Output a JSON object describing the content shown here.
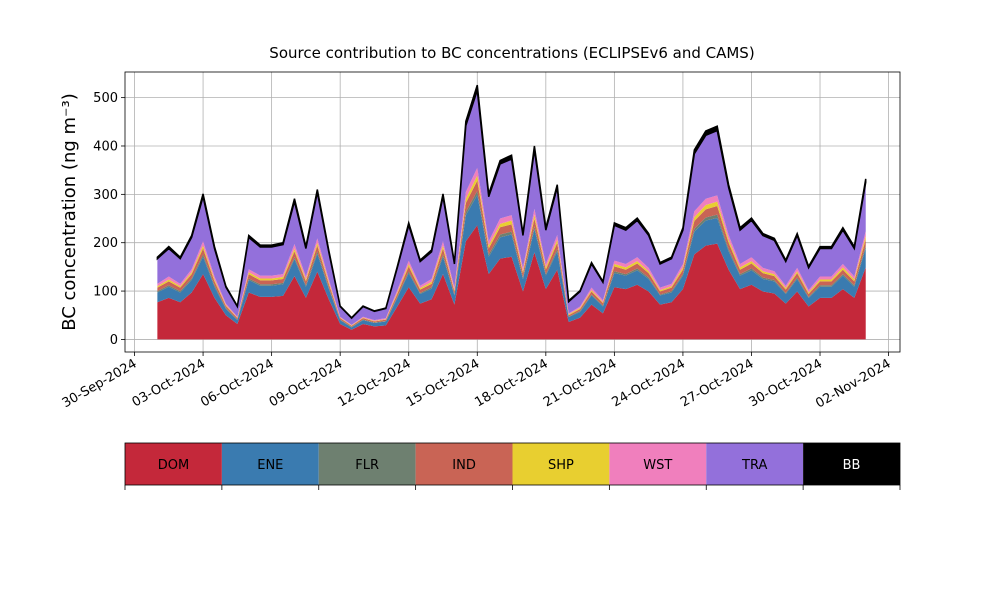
{
  "chart_data": {
    "type": "stacked_area",
    "title": "Source contribution to BC concentrations (ECLIPSEv6 and CAMS)",
    "y_label": "BC concentration (ng m⁻³)",
    "x": [
      "2024-10-01T00:00",
      "2024-10-01T12:00",
      "2024-10-02T00:00",
      "2024-10-02T12:00",
      "2024-10-03T00:00",
      "2024-10-03T12:00",
      "2024-10-04T00:00",
      "2024-10-04T12:00",
      "2024-10-05T00:00",
      "2024-10-05T12:00",
      "2024-10-06T00:00",
      "2024-10-06T12:00",
      "2024-10-07T00:00",
      "2024-10-07T12:00",
      "2024-10-08T00:00",
      "2024-10-08T12:00",
      "2024-10-09T00:00",
      "2024-10-09T12:00",
      "2024-10-10T00:00",
      "2024-10-10T12:00",
      "2024-10-11T00:00",
      "2024-10-11T12:00",
      "2024-10-12T00:00",
      "2024-10-12T12:00",
      "2024-10-13T00:00",
      "2024-10-13T12:00",
      "2024-10-14T00:00",
      "2024-10-14T12:00",
      "2024-10-15T00:00",
      "2024-10-15T12:00",
      "2024-10-16T00:00",
      "2024-10-16T12:00",
      "2024-10-17T00:00",
      "2024-10-17T12:00",
      "2024-10-18T00:00",
      "2024-10-18T12:00",
      "2024-10-19T00:00",
      "2024-10-19T12:00",
      "2024-10-20T00:00",
      "2024-10-20T12:00",
      "2024-10-21T00:00",
      "2024-10-21T12:00",
      "2024-10-22T00:00",
      "2024-10-22T12:00",
      "2024-10-23T00:00",
      "2024-10-23T12:00",
      "2024-10-24T00:00",
      "2024-10-24T12:00",
      "2024-10-25T00:00",
      "2024-10-25T12:00",
      "2024-10-26T00:00",
      "2024-10-26T12:00",
      "2024-10-27T00:00",
      "2024-10-27T12:00",
      "2024-10-28T00:00",
      "2024-10-28T12:00",
      "2024-10-29T00:00",
      "2024-10-29T12:00",
      "2024-10-30T00:00",
      "2024-10-30T12:00",
      "2024-10-31T00:00",
      "2024-10-31T12:00",
      "2024-11-01T00:00"
    ],
    "series": [
      {
        "name": "DOM",
        "color": "#c4283a",
        "values": [
          77,
          86,
          77,
          97,
          135,
          86,
          50,
          32,
          97,
          88,
          88,
          90,
          131,
          86,
          140,
          83,
          32,
          20,
          32,
          27,
          29,
          68,
          108,
          74,
          83,
          135,
          72,
          203,
          236,
          135,
          167,
          171,
          99,
          180,
          104,
          144,
          36,
          45,
          72,
          54,
          108,
          104,
          113,
          99,
          72,
          77,
          104,
          176,
          194,
          198,
          144,
          104,
          113,
          99,
          95,
          74,
          99,
          68,
          86,
          86,
          104,
          86,
          149
        ]
      },
      {
        "name": "ENE",
        "color": "#3a7bb0",
        "values": [
          20,
          23,
          20,
          26,
          36,
          23,
          13,
          8,
          26,
          23,
          23,
          24,
          35,
          23,
          37,
          22,
          8,
          5,
          8,
          7,
          8,
          18,
          29,
          20,
          22,
          36,
          19,
          54,
          63,
          36,
          44,
          46,
          26,
          48,
          28,
          38,
          10,
          12,
          19,
          14,
          29,
          28,
          30,
          26,
          19,
          20,
          28,
          47,
          52,
          53,
          38,
          28,
          30,
          26,
          25,
          20,
          26,
          18,
          23,
          23,
          28,
          23,
          40
        ]
      },
      {
        "name": "FLR",
        "color": "#6e8070",
        "values": [
          3,
          3,
          3,
          3,
          5,
          3,
          2,
          1,
          3,
          3,
          3,
          3,
          4,
          3,
          5,
          3,
          1,
          1,
          1,
          1,
          1,
          2,
          4,
          2,
          3,
          5,
          2,
          7,
          8,
          5,
          6,
          6,
          3,
          6,
          3,
          5,
          1,
          2,
          2,
          2,
          4,
          3,
          4,
          3,
          2,
          3,
          3,
          6,
          6,
          7,
          5,
          3,
          4,
          3,
          3,
          2,
          3,
          2,
          3,
          3,
          3,
          3,
          5
        ]
      },
      {
        "name": "IND",
        "color": "#c96455",
        "values": [
          7,
          8,
          7,
          9,
          12,
          8,
          4,
          3,
          9,
          8,
          8,
          8,
          12,
          8,
          12,
          7,
          3,
          2,
          3,
          2,
          3,
          6,
          10,
          7,
          7,
          12,
          6,
          18,
          21,
          12,
          15,
          15,
          9,
          16,
          9,
          13,
          3,
          4,
          6,
          5,
          10,
          9,
          10,
          9,
          6,
          7,
          9,
          16,
          17,
          18,
          13,
          9,
          10,
          9,
          8,
          7,
          9,
          6,
          8,
          8,
          9,
          8,
          13
        ]
      },
      {
        "name": "SHP",
        "color": "#e8cf30",
        "values": [
          3,
          4,
          3,
          4,
          6,
          4,
          2,
          1,
          4,
          4,
          4,
          4,
          6,
          4,
          6,
          4,
          1,
          1,
          1,
          1,
          1,
          3,
          5,
          3,
          4,
          6,
          3,
          9,
          11,
          6,
          7,
          8,
          4,
          8,
          5,
          6,
          2,
          2,
          3,
          2,
          5,
          5,
          5,
          4,
          3,
          3,
          5,
          8,
          9,
          9,
          6,
          5,
          5,
          4,
          4,
          3,
          4,
          3,
          4,
          4,
          5,
          4,
          7
        ]
      },
      {
        "name": "WST",
        "color": "#f07fbd",
        "values": [
          5,
          6,
          5,
          6,
          9,
          6,
          3,
          2,
          6,
          6,
          6,
          6,
          9,
          6,
          9,
          6,
          2,
          1,
          2,
          2,
          2,
          5,
          7,
          5,
          6,
          9,
          5,
          14,
          16,
          9,
          11,
          11,
          7,
          12,
          7,
          10,
          2,
          3,
          5,
          4,
          7,
          7,
          8,
          7,
          5,
          5,
          7,
          12,
          13,
          13,
          10,
          7,
          8,
          7,
          6,
          5,
          7,
          5,
          6,
          6,
          7,
          6,
          10
        ]
      },
      {
        "name": "TRA",
        "color": "#9370db",
        "values": [
          52,
          58,
          52,
          66,
          92,
          58,
          34,
          21,
          66,
          59,
          59,
          61,
          88,
          58,
          95,
          56,
          21,
          14,
          21,
          18,
          20,
          46,
          73,
          50,
          56,
          92,
          49,
          137,
          160,
          92,
          113,
          116,
          67,
          122,
          70,
          98,
          24,
          31,
          49,
          37,
          73,
          70,
          76,
          67,
          49,
          52,
          70,
          119,
          131,
          134,
          98,
          70,
          76,
          67,
          64,
          50,
          67,
          46,
          58,
          58,
          70,
          58,
          101
        ]
      },
      {
        "name": "BB",
        "color": "#000000",
        "values": [
          3,
          4,
          3,
          4,
          6,
          4,
          2,
          1,
          4,
          4,
          4,
          4,
          6,
          4,
          6,
          4,
          1,
          1,
          1,
          1,
          1,
          3,
          5,
          3,
          4,
          6,
          3,
          9,
          11,
          6,
          7,
          8,
          4,
          8,
          5,
          6,
          2,
          2,
          3,
          2,
          5,
          5,
          5,
          4,
          3,
          3,
          5,
          8,
          9,
          9,
          6,
          5,
          5,
          4,
          4,
          3,
          4,
          3,
          4,
          4,
          5,
          4,
          7
        ]
      }
    ],
    "xlim": [
      "2024-09-29T14:00",
      "2024-11-02T12:00"
    ],
    "xticks": [
      {
        "value": "2024-09-30T00:00",
        "label": "30-Sep-2024"
      },
      {
        "value": "2024-10-03T00:00",
        "label": "03-Oct-2024"
      },
      {
        "value": "2024-10-06T00:00",
        "label": "06-Oct-2024"
      },
      {
        "value": "2024-10-09T00:00",
        "label": "09-Oct-2024"
      },
      {
        "value": "2024-10-12T00:00",
        "label": "12-Oct-2024"
      },
      {
        "value": "2024-10-15T00:00",
        "label": "15-Oct-2024"
      },
      {
        "value": "2024-10-18T00:00",
        "label": "18-Oct-2024"
      },
      {
        "value": "2024-10-21T00:00",
        "label": "21-Oct-2024"
      },
      {
        "value": "2024-10-24T00:00",
        "label": "24-Oct-2024"
      },
      {
        "value": "2024-10-27T00:00",
        "label": "27-Oct-2024"
      },
      {
        "value": "2024-10-30T00:00",
        "label": "30-Oct-2024"
      },
      {
        "value": "2024-11-02T00:00",
        "label": "02-Nov-2024"
      }
    ],
    "ylim": [
      -26,
      553
    ],
    "yticks": [
      0,
      100,
      200,
      300,
      400,
      500
    ],
    "grid": true,
    "legend": "below"
  }
}
